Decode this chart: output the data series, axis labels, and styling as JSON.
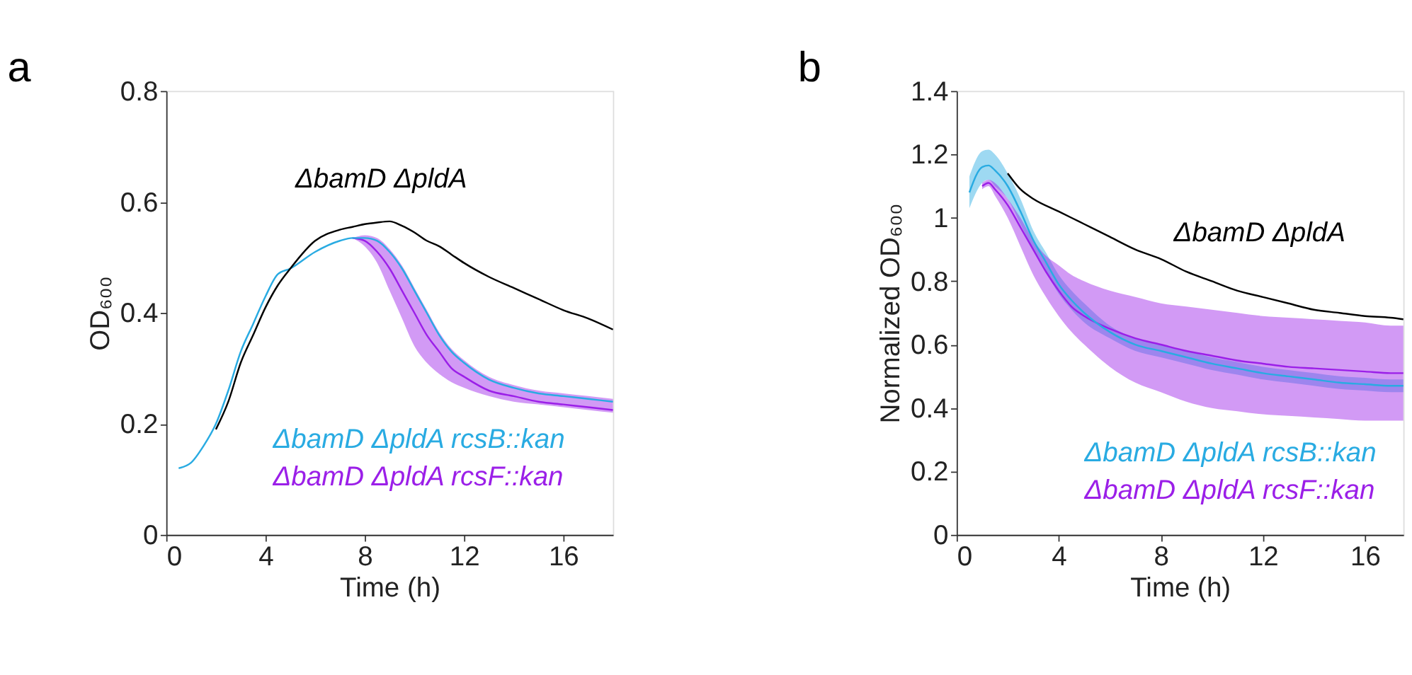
{
  "chart_data": [
    {
      "type": "line",
      "title": "a",
      "xlabel": "Time (h)",
      "ylabel": "OD₆₀₀",
      "xlim": [
        0,
        18
      ],
      "xticks": [
        0,
        4,
        8,
        12,
        16
      ],
      "ylim": [
        0,
        0.8
      ],
      "yticks": [
        0,
        0.2,
        0.4,
        0.6,
        0.8
      ],
      "grid": false,
      "legend": false,
      "marker": "none",
      "line_style": "solid",
      "x": [
        0.5,
        1,
        1.5,
        2,
        2.5,
        3,
        3.5,
        4,
        4.5,
        5,
        6,
        7,
        7.5,
        8,
        8.5,
        9,
        9.5,
        10,
        10.5,
        11,
        11.5,
        12,
        13,
        14,
        15,
        16,
        17,
        18
      ],
      "series": [
        {
          "name": "ΔbamD ΔpldA",
          "color": "#000000",
          "values": [
            null,
            null,
            null,
            0.19,
            0.24,
            0.31,
            0.36,
            0.41,
            0.45,
            0.48,
            0.53,
            0.55,
            0.555,
            0.56,
            0.563,
            0.565,
            0.557,
            0.545,
            0.53,
            0.52,
            0.505,
            0.49,
            0.465,
            0.445,
            0.425,
            0.405,
            0.39,
            0.37
          ]
        },
        {
          "name": "ΔbamD ΔpldA rcsB::kan",
          "color": "#29abe2",
          "values": [
            0.12,
            0.13,
            0.16,
            0.2,
            0.26,
            0.33,
            0.38,
            0.43,
            0.47,
            0.48,
            0.51,
            0.53,
            0.535,
            0.535,
            0.53,
            0.51,
            0.48,
            0.44,
            0.4,
            0.36,
            0.33,
            0.31,
            0.28,
            0.265,
            0.255,
            0.25,
            0.245,
            0.24
          ]
        },
        {
          "name": "ΔbamD ΔpldA rcsF::kan",
          "color": "#9b1fe8",
          "values": [
            null,
            null,
            null,
            null,
            null,
            null,
            null,
            null,
            null,
            null,
            null,
            null,
            0.535,
            0.53,
            0.51,
            0.48,
            0.44,
            0.4,
            0.36,
            0.33,
            0.3,
            0.285,
            0.26,
            0.25,
            0.24,
            0.235,
            0.23,
            0.225
          ],
          "lower": [
            null,
            null,
            null,
            null,
            null,
            null,
            null,
            null,
            null,
            null,
            null,
            null,
            0.535,
            0.52,
            0.49,
            0.44,
            0.39,
            0.34,
            0.31,
            0.29,
            0.275,
            0.265,
            0.25,
            0.24,
            0.235,
            0.23,
            0.225,
            0.22
          ],
          "upper": [
            null,
            null,
            null,
            null,
            null,
            null,
            null,
            null,
            null,
            null,
            null,
            null,
            0.535,
            0.54,
            0.535,
            0.515,
            0.485,
            0.445,
            0.405,
            0.365,
            0.335,
            0.315,
            0.285,
            0.27,
            0.26,
            0.255,
            0.25,
            0.245
          ]
        }
      ]
    },
    {
      "type": "line",
      "title": "b",
      "xlabel": "Time (h)",
      "ylabel": "Normalized OD₆₀₀",
      "xlim": [
        0,
        17.5
      ],
      "xticks": [
        0,
        4,
        8,
        12,
        16
      ],
      "ylim": [
        0,
        1.4
      ],
      "yticks": [
        0,
        0.2,
        0.4,
        0.6,
        0.8,
        1,
        1.2,
        1.4
      ],
      "grid": false,
      "legend": false,
      "marker": "none",
      "line_style": "solid",
      "series": [
        {
          "name": "ΔbamD ΔpldA",
          "color": "#000000",
          "x": [
            2,
            2.5,
            3,
            4,
            5,
            6,
            7,
            8,
            9,
            10,
            11,
            12,
            13,
            14,
            15,
            16,
            17,
            17.5
          ],
          "values": [
            1.14,
            1.09,
            1.06,
            1.02,
            0.98,
            0.94,
            0.9,
            0.87,
            0.83,
            0.8,
            0.77,
            0.75,
            0.73,
            0.71,
            0.7,
            0.69,
            0.685,
            0.68
          ]
        },
        {
          "name": "ΔbamD ΔpldA rcsB::kan",
          "color": "#29abe2",
          "x": [
            0.5,
            1,
            1.25,
            1.5,
            2,
            2.5,
            3,
            3.5,
            4,
            4.5,
            5,
            6,
            7,
            8,
            9,
            10,
            11,
            12,
            13,
            14,
            15,
            16,
            17,
            17.5
          ],
          "values": [
            1.08,
            1.16,
            1.165,
            1.15,
            1.1,
            1.02,
            0.93,
            0.86,
            0.79,
            0.74,
            0.7,
            0.64,
            0.6,
            0.58,
            0.56,
            0.54,
            0.525,
            0.51,
            0.5,
            0.49,
            0.48,
            0.475,
            0.47,
            0.47
          ],
          "lower": [
            1.03,
            1.11,
            1.12,
            1.1,
            1.06,
            0.98,
            0.9,
            0.83,
            0.76,
            0.71,
            0.67,
            0.62,
            0.58,
            0.56,
            0.54,
            0.52,
            0.505,
            0.49,
            0.48,
            0.47,
            0.46,
            0.455,
            0.45,
            0.45
          ],
          "upper": [
            1.13,
            1.21,
            1.215,
            1.2,
            1.14,
            1.06,
            0.96,
            0.89,
            0.82,
            0.77,
            0.73,
            0.66,
            0.62,
            0.6,
            0.58,
            0.56,
            0.545,
            0.53,
            0.52,
            0.51,
            0.5,
            0.495,
            0.49,
            0.49
          ]
        },
        {
          "name": "ΔbamD ΔpldA rcsF::kan",
          "color": "#9b1fe8",
          "x": [
            1,
            1.25,
            1.5,
            2,
            2.5,
            3,
            3.5,
            4,
            4.5,
            5,
            6,
            7,
            8,
            9,
            10,
            11,
            12,
            13,
            14,
            15,
            16,
            17,
            17.5
          ],
          "values": [
            1.1,
            1.11,
            1.09,
            1.04,
            0.97,
            0.9,
            0.83,
            0.77,
            0.72,
            0.69,
            0.65,
            0.62,
            0.6,
            0.58,
            0.565,
            0.55,
            0.54,
            0.53,
            0.525,
            0.52,
            0.515,
            0.51,
            0.51
          ],
          "lower": [
            1.09,
            1.1,
            1.07,
            1.0,
            0.91,
            0.82,
            0.75,
            0.69,
            0.64,
            0.6,
            0.53,
            0.48,
            0.45,
            0.42,
            0.4,
            0.39,
            0.38,
            0.375,
            0.37,
            0.365,
            0.36,
            0.36,
            0.36
          ],
          "upper": [
            1.11,
            1.12,
            1.11,
            1.06,
            1.0,
            0.93,
            0.88,
            0.85,
            0.82,
            0.8,
            0.77,
            0.75,
            0.73,
            0.72,
            0.71,
            0.7,
            0.69,
            0.685,
            0.68,
            0.675,
            0.67,
            0.66,
            0.66
          ]
        }
      ]
    }
  ]
}
